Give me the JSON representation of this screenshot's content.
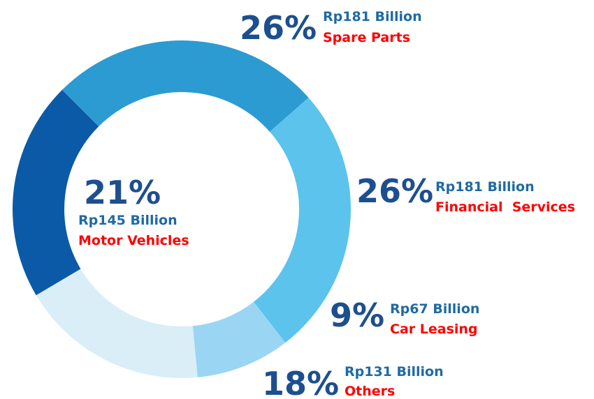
{
  "chart_data": {
    "type": "donut",
    "categories": [
      "Spare Parts",
      "Financial  Services",
      "Car Leasing",
      "Others",
      "Motor Vehicles"
    ],
    "values": [
      26,
      26,
      9,
      18,
      21
    ],
    "value_labels": [
      "26%",
      "26%",
      "9%",
      "18%",
      "21%"
    ],
    "amount_labels": [
      "Rp181 Billion",
      "Rp181 Billion",
      "Rp67 Billion",
      "Rp131 Billion",
      "Rp145 Billion"
    ],
    "colors": [
      "#2b9bd2",
      "#5cc3ec",
      "#9ad5f4",
      "#d9eef6",
      "#0b5aa8"
    ]
  }
}
